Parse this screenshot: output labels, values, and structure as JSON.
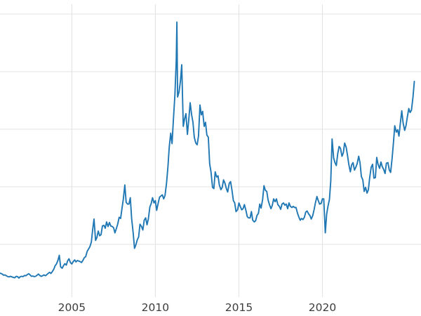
{
  "chart": {
    "background": "#ffffff",
    "line_color": "#1f77b4",
    "grid_color": "#e3e3e3",
    "tick_label_color": "#3d3d3d"
  },
  "chart_data": {
    "type": "line",
    "title": "",
    "xlabel": "",
    "ylabel": "",
    "grid": true,
    "legend": false,
    "x_tick_labels": [
      "2005",
      "2010",
      "2015",
      "2020"
    ],
    "x_tick_years": [
      2005,
      2010,
      2015,
      2020
    ],
    "y_gridlines": [
      10,
      20,
      30,
      40,
      50
    ],
    "xlim": [
      2000.7,
      2025.9
    ],
    "ylim": [
      0,
      50
    ],
    "series": [
      {
        "name": "series-1",
        "points": [
          [
            2000.7,
            5.0
          ],
          [
            2000.75,
            4.95
          ],
          [
            2000.83,
            4.85
          ],
          [
            2000.92,
            4.65
          ],
          [
            2001.0,
            4.7
          ],
          [
            2001.08,
            4.55
          ],
          [
            2001.17,
            4.4
          ],
          [
            2001.25,
            4.35
          ],
          [
            2001.33,
            4.45
          ],
          [
            2001.42,
            4.35
          ],
          [
            2001.5,
            4.25
          ],
          [
            2001.58,
            4.2
          ],
          [
            2001.67,
            4.45
          ],
          [
            2001.75,
            4.4
          ],
          [
            2001.83,
            4.15
          ],
          [
            2001.92,
            4.4
          ],
          [
            2002.0,
            4.45
          ],
          [
            2002.08,
            4.4
          ],
          [
            2002.17,
            4.6
          ],
          [
            2002.25,
            4.55
          ],
          [
            2002.33,
            4.75
          ],
          [
            2002.42,
            4.9
          ],
          [
            2002.5,
            4.7
          ],
          [
            2002.58,
            4.45
          ],
          [
            2002.67,
            4.5
          ],
          [
            2002.75,
            4.4
          ],
          [
            2002.83,
            4.45
          ],
          [
            2002.92,
            4.65
          ],
          [
            2003.0,
            4.85
          ],
          [
            2003.08,
            4.6
          ],
          [
            2003.17,
            4.45
          ],
          [
            2003.25,
            4.55
          ],
          [
            2003.33,
            4.7
          ],
          [
            2003.42,
            4.55
          ],
          [
            2003.5,
            4.75
          ],
          [
            2003.58,
            4.95
          ],
          [
            2003.67,
            5.15
          ],
          [
            2003.75,
            4.95
          ],
          [
            2003.83,
            5.25
          ],
          [
            2003.92,
            5.7
          ],
          [
            2004.0,
            6.3
          ],
          [
            2004.08,
            6.6
          ],
          [
            2004.17,
            7.25
          ],
          [
            2004.25,
            8.1
          ],
          [
            2004.33,
            6.1
          ],
          [
            2004.42,
            5.85
          ],
          [
            2004.5,
            6.3
          ],
          [
            2004.58,
            6.65
          ],
          [
            2004.67,
            6.4
          ],
          [
            2004.75,
            7.15
          ],
          [
            2004.83,
            7.5
          ],
          [
            2004.92,
            6.8
          ],
          [
            2005.0,
            6.6
          ],
          [
            2005.08,
            7.0
          ],
          [
            2005.17,
            7.3
          ],
          [
            2005.25,
            6.95
          ],
          [
            2005.33,
            7.2
          ],
          [
            2005.42,
            7.1
          ],
          [
            2005.5,
            7.0
          ],
          [
            2005.58,
            6.85
          ],
          [
            2005.67,
            7.25
          ],
          [
            2005.75,
            7.7
          ],
          [
            2005.83,
            7.85
          ],
          [
            2005.92,
            8.8
          ],
          [
            2006.0,
            9.2
          ],
          [
            2006.08,
            9.6
          ],
          [
            2006.17,
            10.4
          ],
          [
            2006.25,
            12.6
          ],
          [
            2006.33,
            14.4
          ],
          [
            2006.42,
            10.7
          ],
          [
            2006.5,
            11.2
          ],
          [
            2006.58,
            12.3
          ],
          [
            2006.67,
            11.5
          ],
          [
            2006.75,
            11.7
          ],
          [
            2006.83,
            13.2
          ],
          [
            2006.92,
            13.3
          ],
          [
            2007.0,
            12.8
          ],
          [
            2007.08,
            13.9
          ],
          [
            2007.17,
            13.1
          ],
          [
            2007.25,
            13.8
          ],
          [
            2007.33,
            13.2
          ],
          [
            2007.42,
            13.1
          ],
          [
            2007.5,
            12.9
          ],
          [
            2007.58,
            12.0
          ],
          [
            2007.67,
            12.8
          ],
          [
            2007.75,
            13.6
          ],
          [
            2007.83,
            14.7
          ],
          [
            2007.92,
            14.5
          ],
          [
            2008.0,
            16.2
          ],
          [
            2008.08,
            17.8
          ],
          [
            2008.17,
            20.3
          ],
          [
            2008.25,
            17.3
          ],
          [
            2008.33,
            17.0
          ],
          [
            2008.42,
            17.0
          ],
          [
            2008.5,
            18.1
          ],
          [
            2008.58,
            14.5
          ],
          [
            2008.67,
            12.0
          ],
          [
            2008.75,
            9.3
          ],
          [
            2008.83,
            9.9
          ],
          [
            2008.92,
            10.8
          ],
          [
            2009.0,
            11.3
          ],
          [
            2009.08,
            13.5
          ],
          [
            2009.17,
            13.1
          ],
          [
            2009.25,
            12.5
          ],
          [
            2009.33,
            14.2
          ],
          [
            2009.42,
            14.6
          ],
          [
            2009.5,
            13.4
          ],
          [
            2009.58,
            14.4
          ],
          [
            2009.67,
            16.5
          ],
          [
            2009.75,
            17.1
          ],
          [
            2009.83,
            18.1
          ],
          [
            2009.92,
            17.2
          ],
          [
            2010.0,
            17.6
          ],
          [
            2010.08,
            15.9
          ],
          [
            2010.17,
            17.2
          ],
          [
            2010.25,
            18.2
          ],
          [
            2010.33,
            18.4
          ],
          [
            2010.42,
            18.6
          ],
          [
            2010.5,
            17.9
          ],
          [
            2010.58,
            18.5
          ],
          [
            2010.67,
            20.7
          ],
          [
            2010.75,
            23.4
          ],
          [
            2010.83,
            26.9
          ],
          [
            2010.92,
            29.3
          ],
          [
            2011.0,
            27.5
          ],
          [
            2011.08,
            31.6
          ],
          [
            2011.17,
            36.0
          ],
          [
            2011.25,
            42.0
          ],
          [
            2011.29,
            48.6
          ],
          [
            2011.33,
            35.6
          ],
          [
            2011.42,
            36.5
          ],
          [
            2011.5,
            38.3
          ],
          [
            2011.58,
            41.2
          ],
          [
            2011.67,
            30.5
          ],
          [
            2011.75,
            31.8
          ],
          [
            2011.83,
            32.7
          ],
          [
            2011.92,
            29.1
          ],
          [
            2012.0,
            31.6
          ],
          [
            2012.08,
            34.6
          ],
          [
            2012.17,
            32.5
          ],
          [
            2012.25,
            31.2
          ],
          [
            2012.33,
            28.6
          ],
          [
            2012.42,
            27.6
          ],
          [
            2012.5,
            27.3
          ],
          [
            2012.58,
            28.8
          ],
          [
            2012.67,
            34.2
          ],
          [
            2012.75,
            32.5
          ],
          [
            2012.83,
            33.1
          ],
          [
            2012.92,
            30.5
          ],
          [
            2013.0,
            31.2
          ],
          [
            2013.08,
            29.0
          ],
          [
            2013.17,
            28.6
          ],
          [
            2013.25,
            24.0
          ],
          [
            2013.33,
            22.6
          ],
          [
            2013.42,
            19.9
          ],
          [
            2013.5,
            19.7
          ],
          [
            2013.58,
            22.6
          ],
          [
            2013.67,
            21.7
          ],
          [
            2013.75,
            21.9
          ],
          [
            2013.83,
            20.3
          ],
          [
            2013.92,
            19.5
          ],
          [
            2014.0,
            19.9
          ],
          [
            2014.08,
            21.2
          ],
          [
            2014.17,
            20.6
          ],
          [
            2014.25,
            19.7
          ],
          [
            2014.33,
            19.1
          ],
          [
            2014.42,
            20.6
          ],
          [
            2014.5,
            20.9
          ],
          [
            2014.58,
            19.5
          ],
          [
            2014.67,
            17.6
          ],
          [
            2014.75,
            17.2
          ],
          [
            2014.83,
            15.7
          ],
          [
            2014.92,
            16.0
          ],
          [
            2015.0,
            17.2
          ],
          [
            2015.08,
            16.6
          ],
          [
            2015.17,
            16.0
          ],
          [
            2015.25,
            16.2
          ],
          [
            2015.33,
            16.9
          ],
          [
            2015.42,
            15.9
          ],
          [
            2015.5,
            14.8
          ],
          [
            2015.58,
            14.6
          ],
          [
            2015.67,
            14.6
          ],
          [
            2015.75,
            15.7
          ],
          [
            2015.83,
            14.2
          ],
          [
            2015.92,
            13.9
          ],
          [
            2016.0,
            14.1
          ],
          [
            2016.08,
            15.0
          ],
          [
            2016.17,
            15.4
          ],
          [
            2016.25,
            17.0
          ],
          [
            2016.33,
            16.3
          ],
          [
            2016.42,
            17.8
          ],
          [
            2016.5,
            20.2
          ],
          [
            2016.58,
            19.4
          ],
          [
            2016.67,
            19.2
          ],
          [
            2016.75,
            17.7
          ],
          [
            2016.83,
            16.9
          ],
          [
            2016.92,
            16.2
          ],
          [
            2017.0,
            16.8
          ],
          [
            2017.08,
            17.9
          ],
          [
            2017.17,
            17.4
          ],
          [
            2017.25,
            17.9
          ],
          [
            2017.33,
            16.9
          ],
          [
            2017.42,
            16.6
          ],
          [
            2017.5,
            16.1
          ],
          [
            2017.58,
            17.0
          ],
          [
            2017.67,
            17.2
          ],
          [
            2017.75,
            16.8
          ],
          [
            2017.83,
            17.0
          ],
          [
            2017.92,
            16.2
          ],
          [
            2018.0,
            17.2
          ],
          [
            2018.08,
            16.6
          ],
          [
            2018.17,
            16.4
          ],
          [
            2018.25,
            16.6
          ],
          [
            2018.33,
            16.4
          ],
          [
            2018.42,
            16.4
          ],
          [
            2018.5,
            15.5
          ],
          [
            2018.58,
            14.8
          ],
          [
            2018.67,
            14.2
          ],
          [
            2018.75,
            14.5
          ],
          [
            2018.83,
            14.3
          ],
          [
            2018.92,
            14.7
          ],
          [
            2019.0,
            15.6
          ],
          [
            2019.08,
            15.8
          ],
          [
            2019.17,
            15.3
          ],
          [
            2019.25,
            15.0
          ],
          [
            2019.33,
            14.4
          ],
          [
            2019.42,
            15.0
          ],
          [
            2019.5,
            16.0
          ],
          [
            2019.58,
            17.2
          ],
          [
            2019.67,
            18.3
          ],
          [
            2019.75,
            17.6
          ],
          [
            2019.83,
            17.0
          ],
          [
            2019.92,
            17.1
          ],
          [
            2020.0,
            17.9
          ],
          [
            2020.08,
            17.9
          ],
          [
            2020.17,
            12.0
          ],
          [
            2020.25,
            15.2
          ],
          [
            2020.33,
            16.6
          ],
          [
            2020.42,
            17.8
          ],
          [
            2020.5,
            21.0
          ],
          [
            2020.58,
            28.3
          ],
          [
            2020.67,
            25.0
          ],
          [
            2020.75,
            24.2
          ],
          [
            2020.83,
            23.7
          ],
          [
            2020.92,
            25.8
          ],
          [
            2021.0,
            27.0
          ],
          [
            2021.08,
            26.7
          ],
          [
            2021.17,
            25.3
          ],
          [
            2021.25,
            25.9
          ],
          [
            2021.33,
            27.6
          ],
          [
            2021.42,
            26.9
          ],
          [
            2021.5,
            25.5
          ],
          [
            2021.58,
            23.9
          ],
          [
            2021.67,
            22.6
          ],
          [
            2021.75,
            23.8
          ],
          [
            2021.83,
            24.2
          ],
          [
            2021.92,
            22.9
          ],
          [
            2022.0,
            23.4
          ],
          [
            2022.08,
            24.0
          ],
          [
            2022.17,
            25.3
          ],
          [
            2022.25,
            24.2
          ],
          [
            2022.33,
            21.8
          ],
          [
            2022.42,
            21.2
          ],
          [
            2022.5,
            19.2
          ],
          [
            2022.58,
            19.9
          ],
          [
            2022.67,
            18.9
          ],
          [
            2022.75,
            19.5
          ],
          [
            2022.83,
            21.6
          ],
          [
            2022.92,
            23.4
          ],
          [
            2023.0,
            23.9
          ],
          [
            2023.08,
            21.5
          ],
          [
            2023.17,
            21.6
          ],
          [
            2023.25,
            25.1
          ],
          [
            2023.33,
            23.9
          ],
          [
            2023.42,
            23.2
          ],
          [
            2023.5,
            24.3
          ],
          [
            2023.58,
            23.5
          ],
          [
            2023.67,
            23.0
          ],
          [
            2023.75,
            22.3
          ],
          [
            2023.83,
            24.1
          ],
          [
            2023.92,
            24.2
          ],
          [
            2024.0,
            22.9
          ],
          [
            2024.08,
            22.5
          ],
          [
            2024.17,
            24.9
          ],
          [
            2024.25,
            27.6
          ],
          [
            2024.33,
            30.6
          ],
          [
            2024.42,
            29.5
          ],
          [
            2024.5,
            29.9
          ],
          [
            2024.58,
            28.8
          ],
          [
            2024.67,
            31.2
          ],
          [
            2024.75,
            33.2
          ],
          [
            2024.83,
            31.1
          ],
          [
            2024.92,
            29.8
          ],
          [
            2025.0,
            30.6
          ],
          [
            2025.08,
            32.1
          ],
          [
            2025.17,
            33.6
          ],
          [
            2025.25,
            32.9
          ],
          [
            2025.33,
            33.3
          ],
          [
            2025.42,
            35.6
          ],
          [
            2025.5,
            38.3
          ]
        ]
      }
    ]
  }
}
